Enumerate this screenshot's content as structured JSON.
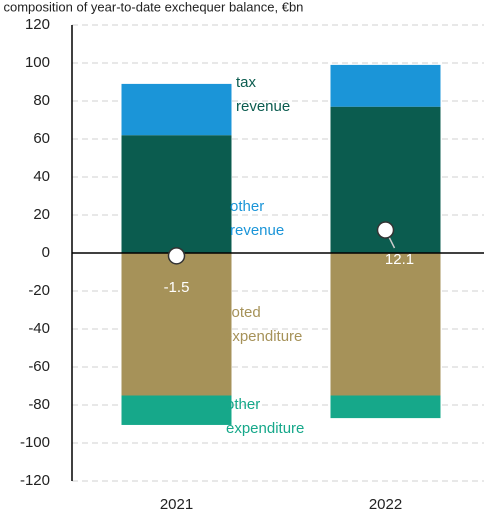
{
  "chart_data": {
    "type": "bar",
    "title": "l composition of year-to-date exchequer balance, €bn",
    "categories": [
      "2021",
      "2022"
    ],
    "series": [
      {
        "name": "tax revenue",
        "color": "#0b5c4f",
        "values": [
          62,
          77
        ]
      },
      {
        "name": "other revenue",
        "color": "#1b95d8",
        "values": [
          27,
          22
        ]
      },
      {
        "name": "voted expenditure",
        "color": "#a69259",
        "values": [
          -75,
          -75
        ]
      },
      {
        "name": "other expenditure",
        "color": "#16a88a",
        "values": [
          -15.5,
          -11.9
        ]
      }
    ],
    "balance": [
      -1.5,
      12.1
    ],
    "ylim": [
      -120,
      120
    ],
    "yticks": [
      -120,
      -100,
      -80,
      -60,
      -40,
      -20,
      0,
      20,
      40,
      60,
      80,
      100,
      120
    ],
    "grid": true
  }
}
